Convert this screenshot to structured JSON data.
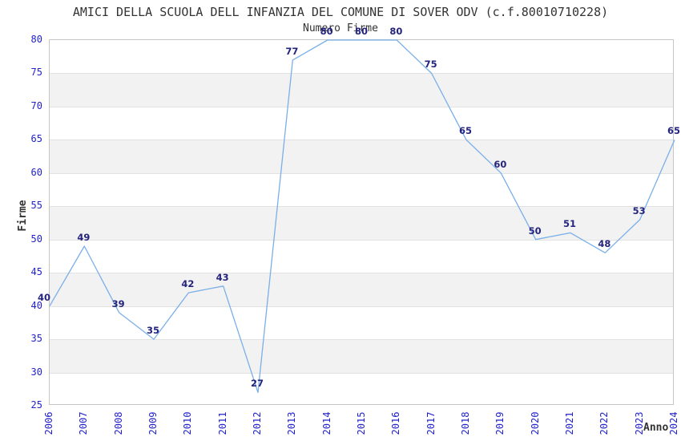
{
  "chart_data": {
    "type": "line",
    "title": "AMICI DELLA SCUOLA DELL INFANZIA DEL COMUNE DI SOVER ODV (c.f.80010710228)",
    "subtitle": "Numero Firme",
    "xlabel": "Anno",
    "ylabel": "Firme",
    "x": [
      "2006",
      "2007",
      "2008",
      "2009",
      "2010",
      "2011",
      "2012",
      "2013",
      "2014",
      "2015",
      "2016",
      "2017",
      "2018",
      "2019",
      "2020",
      "2021",
      "2022",
      "2023",
      "2024"
    ],
    "values": [
      40,
      49,
      39,
      35,
      42,
      43,
      27,
      77,
      80,
      80,
      80,
      75,
      65,
      60,
      50,
      51,
      48,
      53,
      65
    ],
    "ylim": [
      25,
      80
    ],
    "ytick_step": 5,
    "xtick_rotation": -90,
    "grid": "alternating horizontal bands, horizontal gridlines every 5",
    "legend": "none",
    "data_labels": "shown above each point",
    "colors": {
      "line": "#7aafe8",
      "tick_labels": "#2222cc",
      "value_labels": "#24247e",
      "band_fill": "#f2f2f2",
      "gridline": "#e2e2e2",
      "plot_border": "#c6c6c6",
      "text": "#333333",
      "background": "#ffffff"
    }
  }
}
